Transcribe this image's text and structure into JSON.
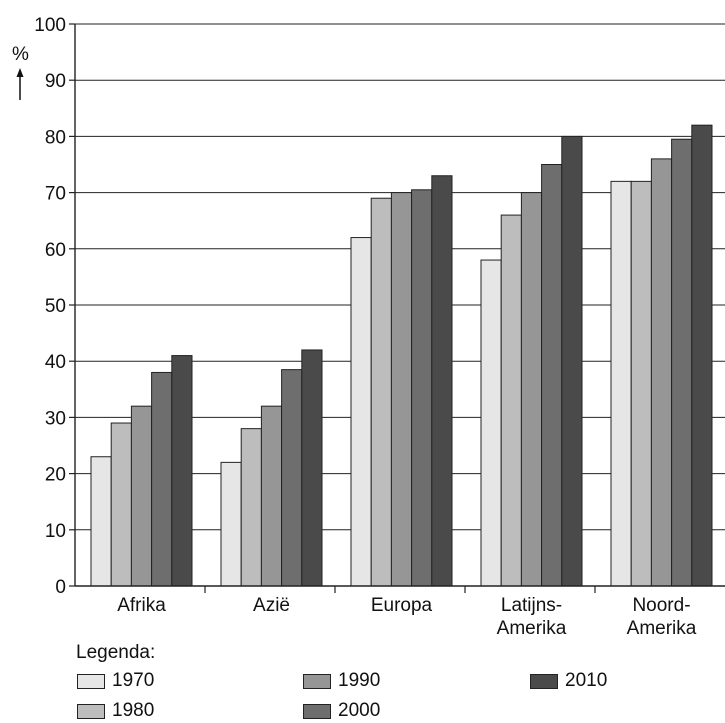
{
  "chart_data": {
    "type": "bar",
    "ylabel": "%",
    "ylim": [
      0,
      100
    ],
    "yticks": [
      0,
      10,
      20,
      30,
      40,
      50,
      60,
      70,
      80,
      90,
      100
    ],
    "grid": true,
    "categories": [
      {
        "line1": "Afrika",
        "line2": ""
      },
      {
        "line1": "Azië",
        "line2": ""
      },
      {
        "line1": "Europa",
        "line2": ""
      },
      {
        "line1": "Latijns-",
        "line2": "Amerika"
      },
      {
        "line1": "Noord-",
        "line2": "Amerika"
      }
    ],
    "series": [
      {
        "name": "1970",
        "color": "#e6e6e6",
        "values": [
          23,
          22,
          62,
          58,
          72
        ]
      },
      {
        "name": "1980",
        "color": "#bdbdbd",
        "values": [
          29,
          28,
          69,
          66,
          72
        ]
      },
      {
        "name": "1990",
        "color": "#969696",
        "values": [
          32,
          32,
          70,
          70,
          76
        ]
      },
      {
        "name": "2000",
        "color": "#6e6e6e",
        "values": [
          38,
          38.5,
          70.5,
          75,
          79.5
        ]
      },
      {
        "name": "2010",
        "color": "#4a4a4a",
        "values": [
          41,
          42,
          73,
          80,
          82
        ]
      }
    ],
    "legend": {
      "title": "Legenda:",
      "placement": "bottom"
    }
  }
}
